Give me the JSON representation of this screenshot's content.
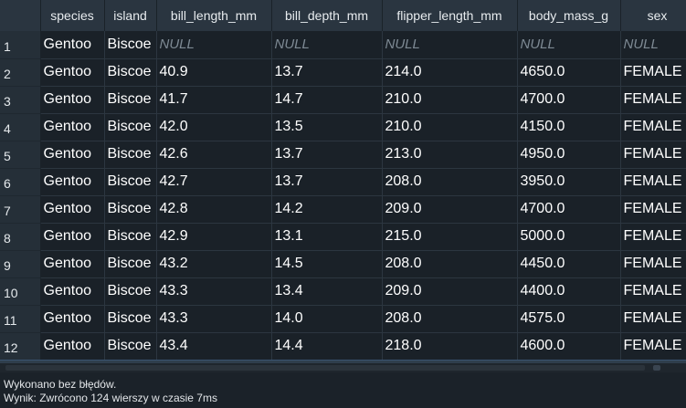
{
  "columns": [
    "species",
    "island",
    "bill_length_mm",
    "bill_depth_mm",
    "flipper_length_mm",
    "body_mass_g",
    "sex"
  ],
  "rows": [
    {
      "num": "1",
      "cells": [
        "Gentoo",
        "Biscoe",
        "NULL",
        "NULL",
        "NULL",
        "NULL",
        "NULL"
      ]
    },
    {
      "num": "2",
      "cells": [
        "Gentoo",
        "Biscoe",
        "40.9",
        "13.7",
        "214.0",
        "4650.0",
        "FEMALE"
      ]
    },
    {
      "num": "3",
      "cells": [
        "Gentoo",
        "Biscoe",
        "41.7",
        "14.7",
        "210.0",
        "4700.0",
        "FEMALE"
      ]
    },
    {
      "num": "4",
      "cells": [
        "Gentoo",
        "Biscoe",
        "42.0",
        "13.5",
        "210.0",
        "4150.0",
        "FEMALE"
      ]
    },
    {
      "num": "5",
      "cells": [
        "Gentoo",
        "Biscoe",
        "42.6",
        "13.7",
        "213.0",
        "4950.0",
        "FEMALE"
      ]
    },
    {
      "num": "6",
      "cells": [
        "Gentoo",
        "Biscoe",
        "42.7",
        "13.7",
        "208.0",
        "3950.0",
        "FEMALE"
      ]
    },
    {
      "num": "7",
      "cells": [
        "Gentoo",
        "Biscoe",
        "42.8",
        "14.2",
        "209.0",
        "4700.0",
        "FEMALE"
      ]
    },
    {
      "num": "8",
      "cells": [
        "Gentoo",
        "Biscoe",
        "42.9",
        "13.1",
        "215.0",
        "5000.0",
        "FEMALE"
      ]
    },
    {
      "num": "9",
      "cells": [
        "Gentoo",
        "Biscoe",
        "43.2",
        "14.5",
        "208.0",
        "4450.0",
        "FEMALE"
      ]
    },
    {
      "num": "10",
      "cells": [
        "Gentoo",
        "Biscoe",
        "43.3",
        "13.4",
        "209.0",
        "4400.0",
        "FEMALE"
      ]
    },
    {
      "num": "11",
      "cells": [
        "Gentoo",
        "Biscoe",
        "43.3",
        "14.0",
        "208.0",
        "4575.0",
        "FEMALE"
      ]
    },
    {
      "num": "12",
      "cells": [
        "Gentoo",
        "Biscoe",
        "43.4",
        "14.4",
        "218.0",
        "4600.0",
        "FEMALE"
      ]
    }
  ],
  "status": {
    "line1": "Wykonano bez błędów.",
    "line2": "Wynik: Zwrócono 124 wierszy w czasie 7ms"
  },
  "colors": {
    "background": "#1a2128",
    "header": "#2a3540",
    "null_text": "#7e8a94"
  }
}
